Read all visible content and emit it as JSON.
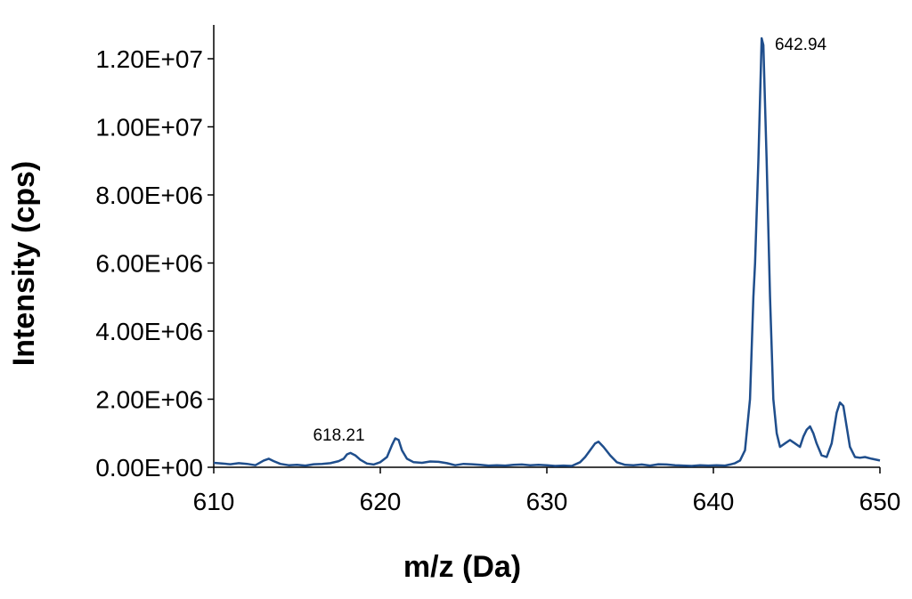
{
  "chart_data": {
    "type": "line",
    "title": "",
    "xlabel": "m/z (Da)",
    "ylabel": "Intensity (cps)",
    "xlim": [
      610,
      650
    ],
    "ylim": [
      0,
      13000000
    ],
    "x_ticks": [
      610,
      620,
      630,
      640,
      650
    ],
    "x_tick_labels": [
      "610",
      "620",
      "630",
      "640",
      "650"
    ],
    "y_ticks": [
      0,
      2000000,
      4000000,
      6000000,
      8000000,
      10000000,
      12000000
    ],
    "y_tick_labels": [
      "0.00E+00",
      "2.00E+06",
      "4.00E+06",
      "6.00E+06",
      "8.00E+06",
      "1.00E+07",
      "1.20E+07"
    ],
    "grid": false,
    "legend": "none",
    "line_color": "#1f4e8c",
    "annotations": [
      {
        "text": "618.21",
        "x": 618.21,
        "y": 420000
      },
      {
        "text": "642.94",
        "x": 642.94,
        "y": 12600000
      }
    ],
    "series": [
      {
        "x": [
          610.0,
          610.5,
          611.0,
          611.5,
          612.0,
          612.5,
          613.0,
          613.3,
          613.6,
          614.0,
          614.5,
          615.0,
          615.5,
          616.0,
          616.5,
          617.0,
          617.5,
          617.8,
          618.0,
          618.21,
          618.5,
          618.8,
          619.2,
          619.6,
          620.0,
          620.4,
          620.7,
          620.9,
          621.1,
          621.3,
          621.6,
          622.0,
          622.5,
          623.0,
          623.5,
          624.0,
          624.5,
          625.0,
          625.5,
          626.0,
          626.5,
          627.0,
          627.5,
          628.0,
          628.5,
          629.0,
          629.5,
          630.0,
          630.5,
          631.0,
          631.5,
          632.0,
          632.3,
          632.6,
          632.9,
          633.1,
          633.4,
          633.8,
          634.2,
          634.7,
          635.2,
          635.7,
          636.2,
          636.7,
          637.2,
          637.7,
          638.2,
          638.7,
          639.2,
          639.7,
          640.2,
          640.7,
          641.0,
          641.3,
          641.6,
          641.9,
          642.2,
          642.4,
          642.5,
          642.7,
          642.9,
          643.0,
          643.2,
          643.4,
          643.6,
          643.8,
          644.0,
          644.3,
          644.6,
          644.9,
          645.2,
          645.4,
          645.6,
          645.8,
          646.0,
          646.2,
          646.5,
          646.8,
          647.1,
          647.4,
          647.6,
          647.8,
          648.0,
          648.2,
          648.5,
          648.8,
          649.1,
          649.5,
          650.0
        ],
        "y": [
          130000,
          110000,
          90000,
          120000,
          100000,
          60000,
          200000,
          250000,
          180000,
          100000,
          60000,
          70000,
          50000,
          90000,
          100000,
          120000,
          180000,
          250000,
          380000,
          420000,
          350000,
          220000,
          110000,
          80000,
          150000,
          300000,
          650000,
          850000,
          800000,
          500000,
          250000,
          150000,
          130000,
          170000,
          160000,
          120000,
          60000,
          100000,
          90000,
          70000,
          50000,
          60000,
          50000,
          70000,
          80000,
          60000,
          70000,
          60000,
          40000,
          50000,
          40000,
          150000,
          300000,
          500000,
          700000,
          750000,
          600000,
          350000,
          150000,
          70000,
          60000,
          80000,
          50000,
          90000,
          80000,
          60000,
          50000,
          40000,
          60000,
          50000,
          60000,
          50000,
          80000,
          120000,
          200000,
          500000,
          2000000,
          5000000,
          6000000,
          9000000,
          12600000,
          12400000,
          9000000,
          5000000,
          2000000,
          1000000,
          600000,
          700000,
          800000,
          700000,
          600000,
          900000,
          1100000,
          1200000,
          1000000,
          700000,
          350000,
          300000,
          700000,
          1600000,
          1900000,
          1800000,
          1200000,
          600000,
          300000,
          280000,
          300000,
          250000,
          200000
        ]
      }
    ]
  }
}
